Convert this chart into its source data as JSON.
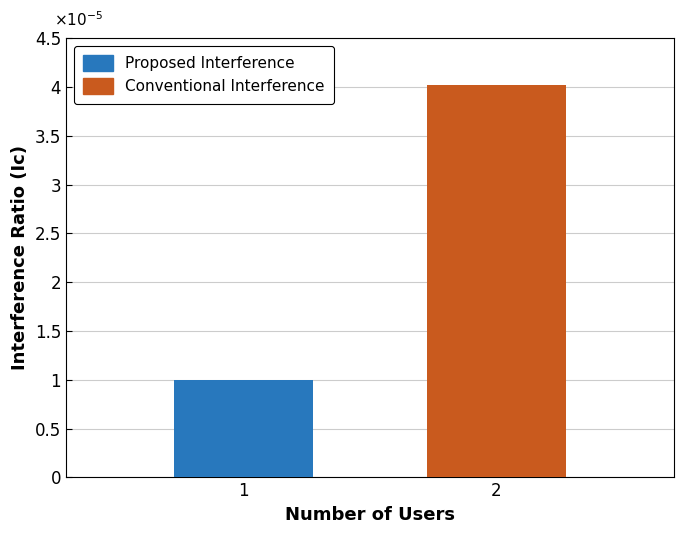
{
  "categories": [
    1,
    2
  ],
  "values": [
    1e-05,
    4.02e-05
  ],
  "bar_colors": [
    "#2878bd",
    "#c95a1e"
  ],
  "legend_labels": [
    "Proposed Interference",
    "Conventional Interference"
  ],
  "xlabel": "Number of Users",
  "ylabel": "Interference Ratio (Ic)",
  "ylim": [
    0,
    4.5e-05
  ],
  "yticks": [
    0,
    5e-06,
    1e-05,
    1.5e-05,
    2e-05,
    2.5e-05,
    3e-05,
    3.5e-05,
    4e-05,
    4.5e-05
  ],
  "ytick_labels": [
    "0",
    "0.5",
    "1",
    "1.5",
    "2",
    "2.5",
    "3",
    "3.5",
    "4",
    "4.5"
  ],
  "xticks": [
    1,
    2
  ],
  "xlim": [
    0.3,
    2.7
  ],
  "bar_width": 0.55,
  "grid": true,
  "background_color": "#ffffff",
  "figsize": [
    6.85,
    5.35
  ],
  "dpi": 100
}
